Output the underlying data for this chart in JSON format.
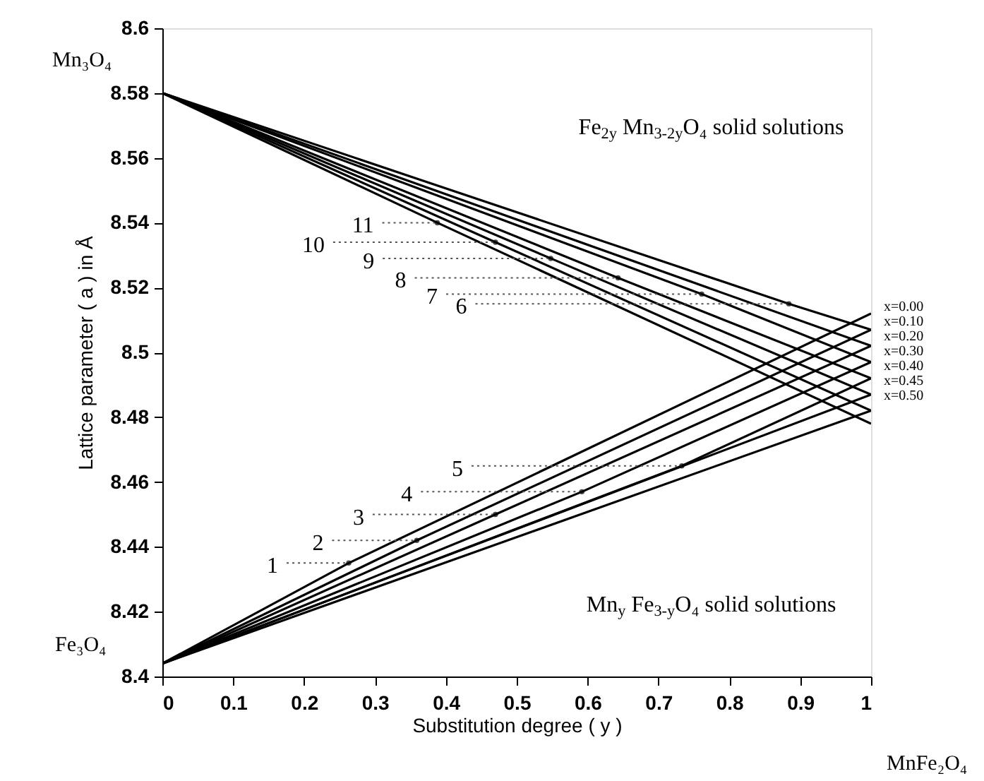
{
  "chart_data": {
    "type": "line",
    "xlabel": "Substitution degree ( y )",
    "ylabel": "Lattice parameter ( a ) in Å",
    "xlim": [
      0,
      1
    ],
    "xticks": [
      0,
      0.1,
      0.2,
      0.3,
      0.4,
      0.5,
      0.6,
      0.7,
      0.8,
      0.9,
      1
    ],
    "ylim": [
      8.4,
      8.6
    ],
    "yticks": [
      8.4,
      8.42,
      8.44,
      8.46,
      8.48,
      8.5,
      8.52,
      8.54,
      8.56,
      8.58,
      8.6
    ],
    "grid": false,
    "series": [
      {
        "color": "#000000",
        "x": [
          0,
          0.884,
          1
        ],
        "values": [
          8.58,
          8.515,
          8.507
        ]
      },
      {
        "color": "#000000",
        "x": [
          0,
          1
        ],
        "values": [
          8.58,
          8.502
        ]
      },
      {
        "color": "#000000",
        "x": [
          0,
          0.761,
          1
        ],
        "values": [
          8.58,
          8.518,
          8.497
        ]
      },
      {
        "color": "#000000",
        "x": [
          0,
          0.643,
          1
        ],
        "values": [
          8.58,
          8.523,
          8.492
        ]
      },
      {
        "color": "#000000",
        "x": [
          0,
          0.548,
          1
        ],
        "values": [
          8.58,
          8.529,
          8.487
        ]
      },
      {
        "color": "#000000",
        "x": [
          0,
          0.47,
          1
        ],
        "values": [
          8.58,
          8.534,
          8.482
        ]
      },
      {
        "color": "#000000",
        "x": [
          0,
          0.388,
          1
        ],
        "values": [
          8.58,
          8.54,
          8.478
        ]
      },
      {
        "color": "#000000",
        "x": [
          0,
          0.263,
          1
        ],
        "values": [
          8.404,
          8.435,
          8.512
        ]
      },
      {
        "color": "#000000",
        "x": [
          0,
          0.359,
          1
        ],
        "values": [
          8.404,
          8.442,
          8.507
        ]
      },
      {
        "color": "#000000",
        "x": [
          0,
          0.47,
          1
        ],
        "values": [
          8.404,
          8.45,
          8.502
        ]
      },
      {
        "color": "#000000",
        "x": [
          0,
          0.592,
          1
        ],
        "values": [
          8.404,
          8.457,
          8.497
        ]
      },
      {
        "color": "#000000",
        "x": [
          0,
          0.733,
          1
        ],
        "values": [
          8.404,
          8.465,
          8.492
        ]
      },
      {
        "color": "#000000",
        "x": [
          0,
          1
        ],
        "values": [
          8.404,
          8.487
        ]
      },
      {
        "color": "#000000",
        "x": [
          0,
          1
        ],
        "values": [
          8.404,
          8.482
        ]
      }
    ],
    "annotations": [
      {
        "text": "1",
        "x": 0.263,
        "y": 8.435
      },
      {
        "text": "2",
        "x": 0.359,
        "y": 8.442
      },
      {
        "text": "3",
        "x": 0.47,
        "y": 8.45
      },
      {
        "text": "4",
        "x": 0.592,
        "y": 8.457
      },
      {
        "text": "5",
        "x": 0.733,
        "y": 8.465
      },
      {
        "text": "6",
        "x": 0.884,
        "y": 8.515
      },
      {
        "text": "7",
        "x": 0.761,
        "y": 8.518
      },
      {
        "text": "8",
        "x": 0.643,
        "y": 8.523
      },
      {
        "text": "9",
        "x": 0.548,
        "y": 8.529
      },
      {
        "text": "10",
        "x": 0.47,
        "y": 8.534
      },
      {
        "text": "11",
        "x": 0.388,
        "y": 8.54
      },
      "Mn₃O₄",
      "Fe₃O₄",
      "MnFe₂O₄",
      "Fe$_{2y}$ Mn$_{3-2y}$O₄ solid solutions",
      "Mn$_{y}$ Fe$_{3-y}$O₄ solid solutions",
      "x=0.00",
      "x=0.10",
      "x=0.20",
      "x=0.30",
      "x=0.40",
      "x=0.45",
      "x=0.50"
    ]
  }
}
